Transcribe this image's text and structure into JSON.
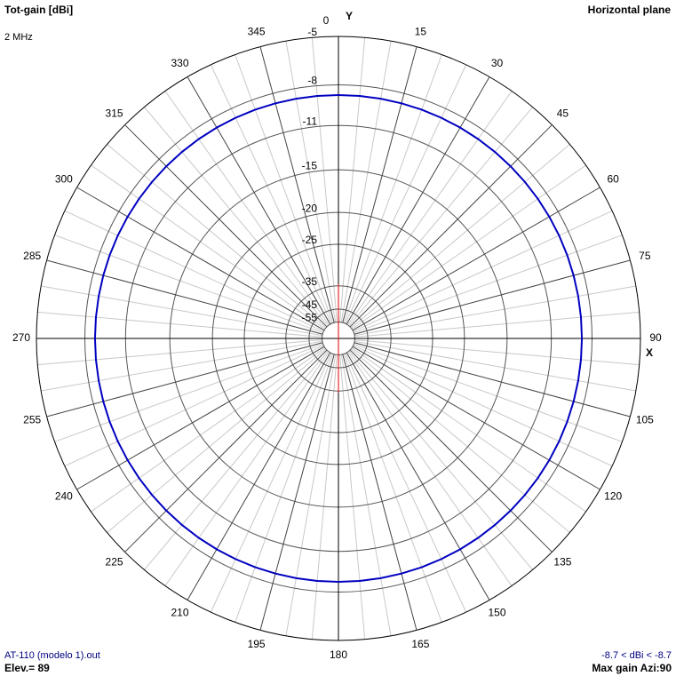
{
  "chart_data": {
    "type": "polar",
    "title": "Tot-gain [dBi]",
    "subtitle": "2 MHz",
    "plane": "Horizontal plane",
    "file": "AT-110 (modelo 1).out",
    "elevation": "Elev.= 89",
    "range_label": "-8.7 < dBi < -8.7",
    "max_gain": "Max gain Azi:90",
    "x_axis_label": "X",
    "y_axis_label": "Y",
    "radial_scale": "arrl",
    "rlim": [
      -55,
      -5
    ],
    "rticks": [
      -5,
      -8,
      -11,
      -15,
      -20,
      -25,
      -35,
      -45,
      -55
    ],
    "thetaticks": [
      0,
      15,
      30,
      45,
      60,
      75,
      90,
      105,
      120,
      135,
      150,
      165,
      180,
      195,
      210,
      225,
      240,
      255,
      270,
      285,
      300,
      315,
      330,
      345
    ],
    "theta": [
      0,
      5,
      10,
      15,
      20,
      25,
      30,
      35,
      40,
      45,
      50,
      55,
      60,
      65,
      70,
      75,
      80,
      85,
      90,
      95,
      100,
      105,
      110,
      115,
      120,
      125,
      130,
      135,
      140,
      145,
      150,
      155,
      160,
      165,
      170,
      175,
      180,
      185,
      190,
      195,
      200,
      205,
      210,
      215,
      220,
      225,
      230,
      235,
      240,
      245,
      250,
      255,
      260,
      265,
      270,
      275,
      280,
      285,
      290,
      295,
      300,
      305,
      310,
      315,
      320,
      325,
      330,
      335,
      340,
      345,
      350,
      355
    ],
    "values": [
      -8.7,
      -8.7,
      -8.7,
      -8.7,
      -8.7,
      -8.7,
      -8.7,
      -8.7,
      -8.7,
      -8.7,
      -8.7,
      -8.7,
      -8.7,
      -8.7,
      -8.7,
      -8.7,
      -8.7,
      -8.7,
      -8.7,
      -8.7,
      -8.7,
      -8.7,
      -8.7,
      -8.7,
      -8.7,
      -8.7,
      -8.7,
      -8.7,
      -8.7,
      -8.7,
      -8.7,
      -8.7,
      -8.7,
      -8.7,
      -8.7,
      -8.7,
      -8.7,
      -8.7,
      -8.7,
      -8.7,
      -8.7,
      -8.7,
      -8.7,
      -8.7,
      -8.7,
      -8.7,
      -8.7,
      -8.7,
      -8.7,
      -8.7,
      -8.7,
      -8.7,
      -8.7,
      -8.7,
      -8.7,
      -8.7,
      -8.7,
      -8.7,
      -8.7,
      -8.7,
      -8.7,
      -8.7,
      -8.7,
      -8.7,
      -8.7,
      -8.7,
      -8.7,
      -8.7,
      -8.7,
      -8.7,
      -8.7,
      -8.7
    ],
    "color": "#0000c0"
  }
}
